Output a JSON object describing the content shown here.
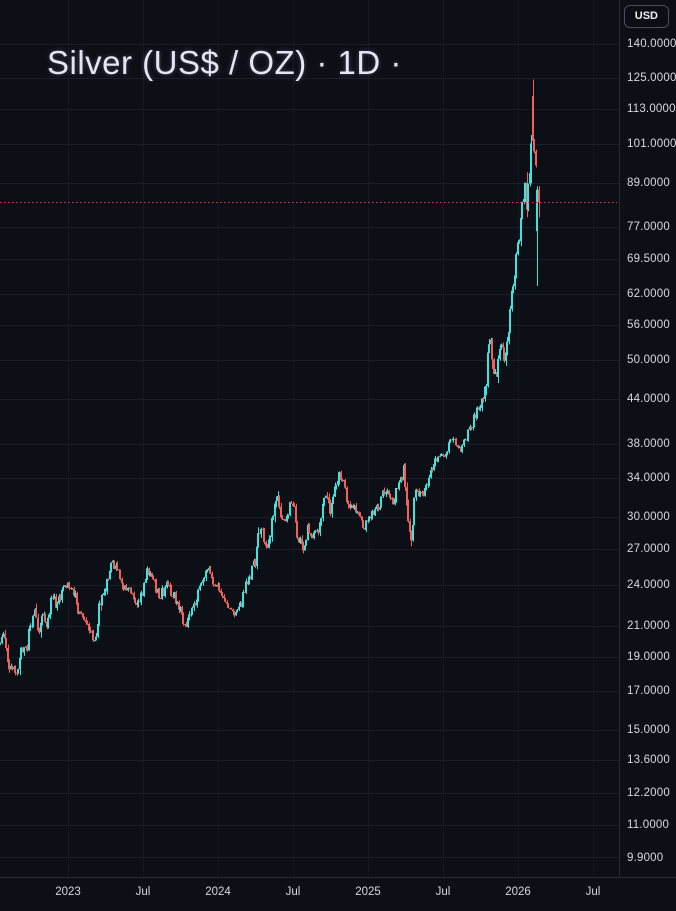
{
  "header": {
    "symbol_title": "Silver (US$ / OZ) · 1D ·"
  },
  "price_axis": {
    "currency_label": "USD"
  },
  "chart_data": {
    "type": "candlestick",
    "title": "Silver (US$ / OZ)",
    "timeframe": "1D",
    "quote_currency": "USD",
    "y_scale": "log",
    "grid": "on",
    "y_axis_ticks": [
      "140.0000",
      "125.0000",
      "113.0000",
      "101.0000",
      "89.0000",
      "77.0000",
      "69.5000",
      "62.0000",
      "56.0000",
      "50.0000",
      "44.0000",
      "38.0000",
      "34.0000",
      "30.0000",
      "27.0000",
      "24.0000",
      "21.0000",
      "19.0000",
      "17.0000",
      "15.0000",
      "13.6000",
      "12.2000",
      "11.0000",
      "9.9000"
    ],
    "x_axis_ticks": [
      {
        "label": "2023",
        "t": 2023.0
      },
      {
        "label": "Jul",
        "t": 2023.5
      },
      {
        "label": "2024",
        "t": 2024.0
      },
      {
        "label": "Jul",
        "t": 2024.5
      },
      {
        "label": "2025",
        "t": 2025.0
      },
      {
        "label": "Jul",
        "t": 2025.5
      },
      {
        "label": "2026",
        "t": 2026.0
      },
      {
        "label": "Jul",
        "t": 2026.5
      }
    ],
    "visible_price_range": [
      9.3,
      161.0
    ],
    "visible_time_range": [
      2022.55,
      2027.05
    ],
    "price_line": {
      "price": 83.5,
      "color": "#f23645",
      "style": "dotted"
    },
    "colors": {
      "up": "#3fe3dd",
      "down": "#f4615a",
      "background": "#0d0f17",
      "grid_horizontal": "rgba(140,155,190,0.11)",
      "grid_vertical": "rgba(140,155,190,0.055)",
      "axis_border": "#262b39",
      "axis_text": "#d6d9e1"
    },
    "series": {
      "name": "Silver spot price, USD per ounce, daily candles",
      "anchors_close": [
        [
          2022.547,
          19.8
        ],
        [
          2022.57,
          20.6
        ],
        [
          2022.6,
          18.6
        ],
        [
          2022.66,
          17.9
        ],
        [
          2022.69,
          19.2
        ],
        [
          2022.72,
          19.7
        ],
        [
          2022.755,
          21.3
        ],
        [
          2022.775,
          22.4
        ],
        [
          2022.8,
          20.2
        ],
        [
          2022.83,
          21.9
        ],
        [
          2022.86,
          20.9
        ],
        [
          2022.895,
          23.5
        ],
        [
          2022.93,
          22.5
        ],
        [
          2022.97,
          24.1
        ],
        [
          2023.0,
          24.0
        ],
        [
          2023.035,
          23.6
        ],
        [
          2023.07,
          22.1
        ],
        [
          2023.11,
          21.5
        ],
        [
          2023.14,
          20.9
        ],
        [
          2023.18,
          20.0
        ],
        [
          2023.22,
          23.0
        ],
        [
          2023.26,
          24.6
        ],
        [
          2023.295,
          26.0
        ],
        [
          2023.33,
          25.1
        ],
        [
          2023.37,
          23.8
        ],
        [
          2023.41,
          23.6
        ],
        [
          2023.455,
          22.4
        ],
        [
          2023.49,
          23.4
        ],
        [
          2023.53,
          25.1
        ],
        [
          2023.57,
          24.5
        ],
        [
          2023.615,
          22.7
        ],
        [
          2023.655,
          24.3
        ],
        [
          2023.695,
          23.3
        ],
        [
          2023.735,
          22.6
        ],
        [
          2023.775,
          21.0
        ],
        [
          2023.81,
          21.9
        ],
        [
          2023.85,
          22.7
        ],
        [
          2023.89,
          24.4
        ],
        [
          2023.93,
          25.4
        ],
        [
          2023.97,
          24.1
        ],
        [
          2024.01,
          23.7
        ],
        [
          2024.05,
          22.6
        ],
        [
          2024.09,
          22.3
        ],
        [
          2024.12,
          21.9
        ],
        [
          2024.16,
          22.8
        ],
        [
          2024.2,
          24.7
        ],
        [
          2024.24,
          25.9
        ],
        [
          2024.285,
          29.3
        ],
        [
          2024.32,
          26.8
        ],
        [
          2024.355,
          29.0
        ],
        [
          2024.385,
          32.2
        ],
        [
          2024.41,
          30.3
        ],
        [
          2024.44,
          29.2
        ],
        [
          2024.47,
          30.8
        ],
        [
          2024.5,
          31.2
        ],
        [
          2024.535,
          28.0
        ],
        [
          2024.57,
          26.8
        ],
        [
          2024.6,
          28.8
        ],
        [
          2024.63,
          28.0
        ],
        [
          2024.66,
          28.7
        ],
        [
          2024.69,
          30.5
        ],
        [
          2024.72,
          32.7
        ],
        [
          2024.745,
          30.1
        ],
        [
          2024.775,
          32.5
        ],
        [
          2024.805,
          34.7
        ],
        [
          2024.835,
          33.6
        ],
        [
          2024.87,
          31.1
        ],
        [
          2024.9,
          30.7
        ],
        [
          2024.935,
          30.4
        ],
        [
          2024.975,
          28.9
        ],
        [
          2025.01,
          29.9
        ],
        [
          2025.05,
          30.5
        ],
        [
          2025.09,
          32.0
        ],
        [
          2025.125,
          32.7
        ],
        [
          2025.16,
          31.6
        ],
        [
          2025.2,
          33.4
        ],
        [
          2025.235,
          34.4
        ],
        [
          2025.27,
          29.7
        ],
        [
          2025.285,
          28.4
        ],
        [
          2025.32,
          32.6
        ],
        [
          2025.355,
          32.2
        ],
        [
          2025.39,
          33.1
        ],
        [
          2025.425,
          34.7
        ],
        [
          2025.455,
          36.2
        ],
        [
          2025.49,
          36.4
        ],
        [
          2025.52,
          36.9
        ],
        [
          2025.55,
          38.7
        ],
        [
          2025.585,
          37.9
        ],
        [
          2025.615,
          37.1
        ],
        [
          2025.65,
          38.6
        ],
        [
          2025.685,
          40.2
        ],
        [
          2025.72,
          41.8
        ],
        [
          2025.755,
          43.3
        ],
        [
          2025.78,
          45.5
        ],
        [
          2025.8,
          51.5
        ],
        [
          2025.815,
          54.5
        ],
        [
          2025.84,
          46.3
        ],
        [
          2025.865,
          49.8
        ],
        [
          2025.885,
          53.0
        ],
        [
          2025.905,
          49.3
        ],
        [
          2025.925,
          52.5
        ],
        [
          2025.945,
          56.5
        ],
        [
          2025.965,
          62.5
        ],
        [
          2025.985,
          69.0
        ],
        [
          2026.005,
          76.0
        ],
        [
          2026.02,
          80.5
        ],
        [
          2026.035,
          85.0
        ],
        [
          2026.048,
          87.5
        ],
        [
          2026.058,
          82.0
        ],
        [
          2026.068,
          89.0
        ],
        [
          2026.078,
          95.0
        ],
        [
          2026.088,
          106.0
        ],
        [
          2026.094,
          115.0
        ],
        [
          2026.1,
          113.0
        ],
        [
          2026.106,
          101.0
        ],
        [
          2026.112,
          92.0
        ],
        [
          2026.118,
          96.5
        ],
        [
          2026.124,
          86.0
        ],
        [
          2026.13,
          84.0
        ],
        [
          2026.14,
          83.5
        ]
      ],
      "feature_candles": [
        {
          "t": 2026.097,
          "o": 118.0,
          "h": 124.5,
          "l": 100.0,
          "c": 102.0
        },
        {
          "t": 2026.127,
          "o": 76.0,
          "h": 88.0,
          "l": 63.6,
          "c": 87.0
        },
        {
          "t": 2026.137,
          "o": 87.0,
          "h": 88.0,
          "l": 79.5,
          "c": 83.5
        }
      ],
      "last_close": 83.5,
      "peak_high": 124.5,
      "crash_low": 63.6
    },
    "render": {
      "seed": 9,
      "step_years": 0.01,
      "start_t": 2022.547,
      "end_t": 2026.137
    }
  }
}
